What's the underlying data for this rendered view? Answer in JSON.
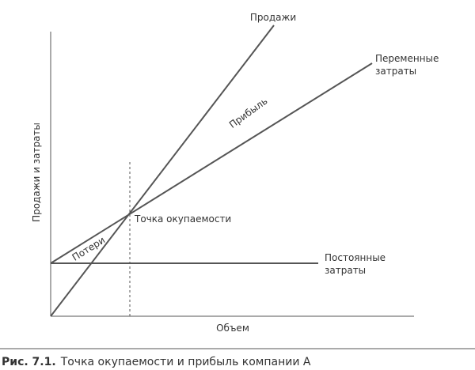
{
  "diagram": {
    "y_axis_label": "Продажи и затраты",
    "x_axis_label": "Объем",
    "sales_label": "Продажи",
    "variable_costs_label": [
      "Переменные",
      "затраты"
    ],
    "fixed_costs_label": [
      "Постоянные",
      "затраты"
    ],
    "profit_label": "Прибыль",
    "loss_label": "Потери",
    "breakeven_label": "Точка окупаемости"
  },
  "caption": {
    "label": "Рис. 7.1.",
    "text": "Точка окупаемости и прибыль компании А"
  }
}
